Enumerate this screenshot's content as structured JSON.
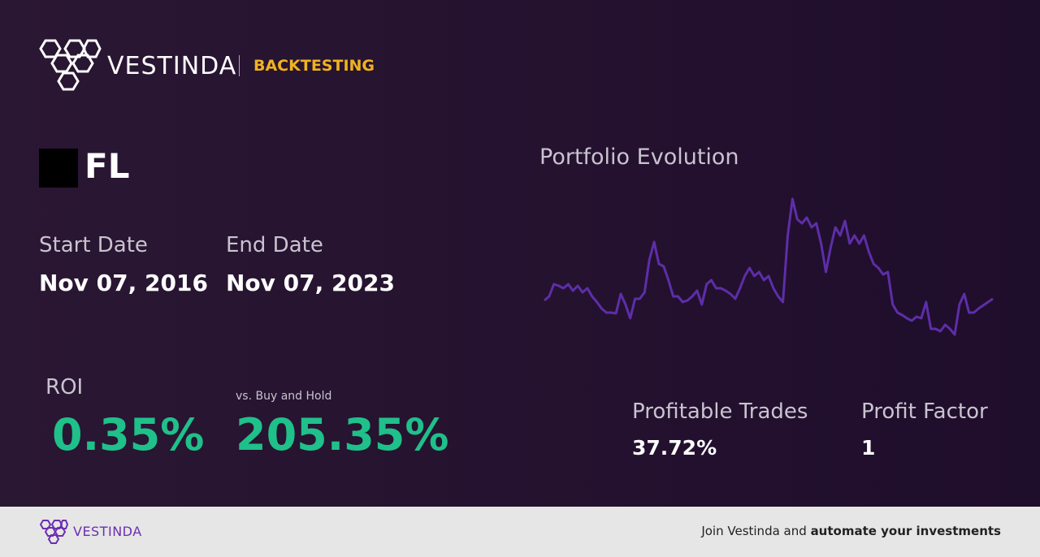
{
  "header": {
    "brand": "VESTINDA",
    "section": "BACKTESTING"
  },
  "asset": {
    "ticker": "FL"
  },
  "dates": {
    "start_label": "Start Date",
    "start_value": "Nov 07, 2016",
    "end_label": "End Date",
    "end_value": "Nov 07, 2023"
  },
  "metrics": {
    "roi_label": "ROI",
    "roi_value": "0.35%",
    "bh_label": "vs. Buy and Hold",
    "bh_value": "205.35%",
    "trades_label": "Profitable Trades",
    "trades_value": "37.72%",
    "pf_label": "Profit Factor",
    "pf_value": "1"
  },
  "chart_data": {
    "type": "line",
    "title": "Portfolio Evolution",
    "color": "#5d2ea8",
    "ylim": [
      0,
      180
    ],
    "values": [
      50,
      55,
      70,
      68,
      65,
      70,
      62,
      68,
      60,
      65,
      55,
      48,
      40,
      35,
      35,
      34,
      58,
      45,
      28,
      52,
      52,
      60,
      100,
      122,
      95,
      92,
      75,
      55,
      55,
      48,
      50,
      55,
      62,
      45,
      70,
      75,
      65,
      65,
      62,
      58,
      52,
      65,
      80,
      90,
      80,
      85,
      75,
      80,
      65,
      55,
      48,
      130,
      175,
      150,
      145,
      152,
      140,
      145,
      120,
      85,
      115,
      140,
      130,
      148,
      120,
      130,
      120,
      130,
      110,
      95,
      90,
      82,
      85,
      45,
      35,
      32,
      28,
      25,
      30,
      28,
      48,
      15,
      15,
      12,
      20,
      15,
      8,
      45,
      58,
      35,
      35,
      40,
      44,
      48,
      52
    ]
  },
  "footer": {
    "brand": "VESTINDA",
    "text": "Join Vestinda and",
    "bold": "automate your investments"
  }
}
